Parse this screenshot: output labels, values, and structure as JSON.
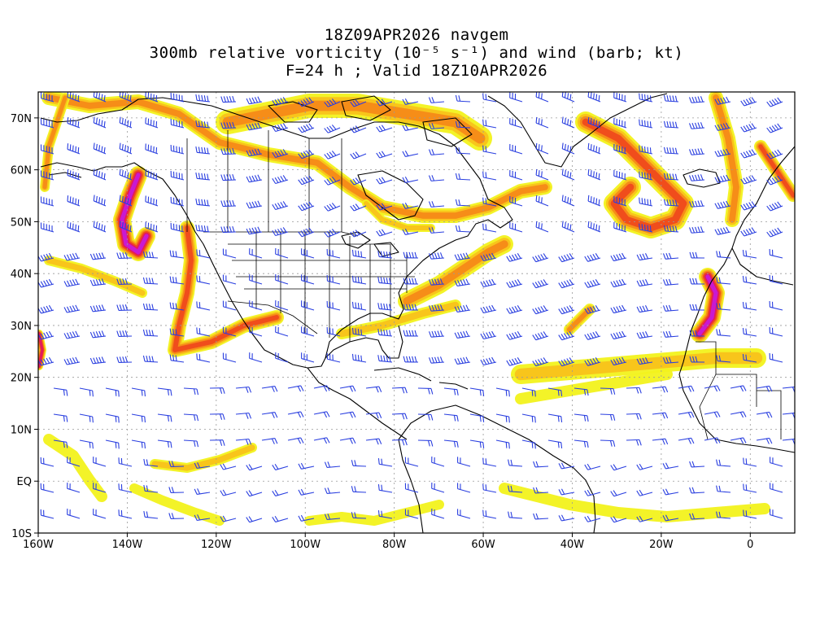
{
  "title": {
    "line1": "18Z09APR2026 navgem",
    "line2": "300mb relative vorticity (10⁻⁵ s⁻¹) and wind (barb; kt)",
    "line3": "F=24 h ; Valid 18Z10APR2026"
  },
  "axes": {
    "lon_range": [
      -160,
      10
    ],
    "lat_range": [
      -10,
      75
    ],
    "lon_ticks": [
      {
        "value": -160,
        "label": "160W"
      },
      {
        "value": -140,
        "label": "140W"
      },
      {
        "value": -120,
        "label": "120W"
      },
      {
        "value": -100,
        "label": "100W"
      },
      {
        "value": -80,
        "label": "80W"
      },
      {
        "value": -60,
        "label": "60W"
      },
      {
        "value": -40,
        "label": "40W"
      },
      {
        "value": -20,
        "label": "20W"
      },
      {
        "value": 0,
        "label": "0"
      }
    ],
    "lat_ticks": [
      {
        "value": 70,
        "label": "70N"
      },
      {
        "value": 60,
        "label": "60N"
      },
      {
        "value": 50,
        "label": "50N"
      },
      {
        "value": 40,
        "label": "40N"
      },
      {
        "value": 30,
        "label": "30N"
      },
      {
        "value": 20,
        "label": "20N"
      },
      {
        "value": 10,
        "label": "10N"
      },
      {
        "value": 0,
        "label": "EQ"
      },
      {
        "value": -10,
        "label": "10S"
      }
    ],
    "grid": "dotted"
  },
  "colors": {
    "barb": "#2a3fe0",
    "coast": "#000000",
    "grid": "#999999",
    "shade_levels": [
      "#f2f21c",
      "#f8c21a",
      "#f58a18",
      "#ef4a1c",
      "#e0175f",
      "#c719d8"
    ]
  }
}
